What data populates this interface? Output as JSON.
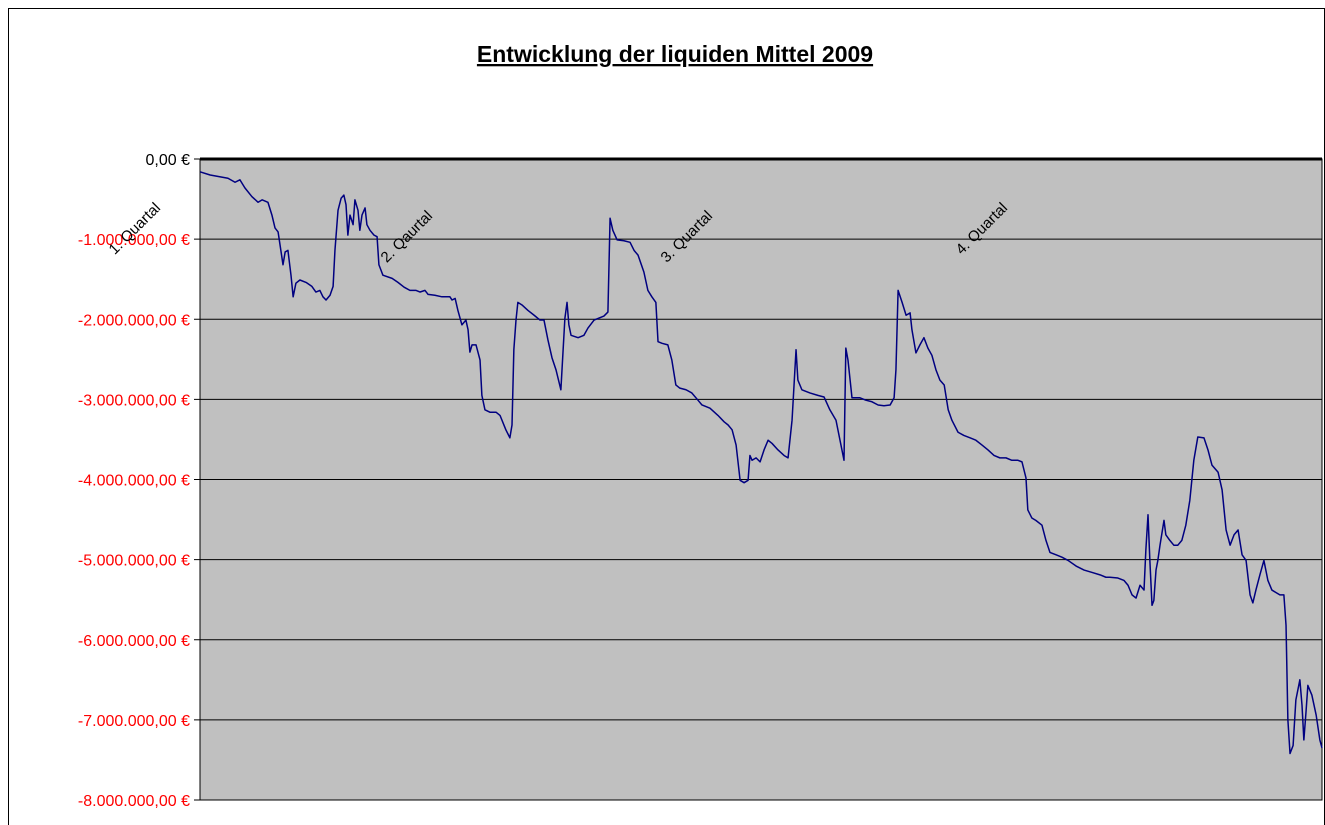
{
  "chart_data": {
    "type": "line",
    "title": "Entwicklung der liquiden Mittel 2009",
    "annotations": [
      "1. Quartal",
      "2. Qaurtal",
      "3. Quartal",
      "4. Quartal"
    ],
    "color": "#000080",
    "plot_background": "#c0c0c0",
    "grid": true,
    "negative_tick_label_color": "#ff0000",
    "xlim": [
      0,
      365
    ],
    "ylim": [
      -8000000,
      0
    ],
    "yticks": [
      {
        "value": 0,
        "label": "0,00 €"
      },
      {
        "value": -1000000,
        "label": "-1.000.000,00 €"
      },
      {
        "value": -2000000,
        "label": "-2.000.000,00 €"
      },
      {
        "value": -3000000,
        "label": "-3.000.000,00 €"
      },
      {
        "value": -4000000,
        "label": "-4.000.000,00 €"
      },
      {
        "value": -5000000,
        "label": "-5.000.000,00 €"
      },
      {
        "value": -6000000,
        "label": "-6.000.000,00 €"
      },
      {
        "value": -7000000,
        "label": "-7.000.000,00 €"
      },
      {
        "value": -8000000,
        "label": "-8.000.000,00 €"
      }
    ],
    "x": [
      0,
      3.3,
      9.1,
      11.4,
      13.0,
      14.6,
      16.9,
      18.9,
      20.2,
      22.1,
      23.4,
      24.4,
      25.4,
      26.3,
      27.0,
      27.7,
      28.6,
      29.6,
      30.3,
      31.2,
      32.5,
      34.5,
      36.4,
      37.7,
      39.0,
      40.0,
      41.0,
      42.3,
      43.3,
      43.9,
      44.9,
      45.9,
      46.8,
      47.5,
      48.1,
      48.8,
      49.8,
      50.4,
      51.4,
      52.0,
      52.7,
      53.7,
      54.3,
      55.3,
      56.6,
      57.6,
      58.2,
      59.5,
      62.5,
      64.4,
      66.4,
      68.3,
      70.3,
      71.6,
      73.2,
      74.2,
      76.4,
      78.7,
      81.3,
      82.0,
      83.0,
      83.9,
      85.2,
      86.5,
      87.2,
      87.8,
      88.5,
      89.8,
      91.1,
      91.7,
      92.7,
      94.3,
      96.3,
      97.6,
      99.5,
      100.8,
      101.5,
      102.1,
      102.8,
      103.4,
      104.7,
      106.7,
      108.7,
      110.6,
      111.9,
      113.2,
      114.5,
      115.8,
      117.4,
      118.7,
      119.4,
      120.0,
      120.7,
      123.0,
      124.9,
      126.2,
      128.2,
      129.5,
      131.4,
      132.7,
      133.4,
      134.3,
      135.7,
      137.9,
      139.9,
      141.2,
      142.5,
      144.4,
      145.7,
      147.0,
      148.3,
      149.0,
      150.3,
      152.2,
      153.5,
      154.8,
      156.1,
      158.1,
      160.0,
      162.0,
      163.3,
      165.9,
      168.5,
      170.5,
      171.8,
      173.1,
      174.4,
      175.7,
      177.0,
      178.3,
      178.9,
      179.6,
      180.9,
      182.2,
      183.5,
      184.8,
      186.1,
      188.0,
      190.0,
      191.3,
      192.6,
      193.9,
      194.5,
      195.8,
      198.4,
      201.0,
      203.0,
      204.9,
      206.9,
      208.2,
      209.5,
      210.1,
      210.8,
      212.1,
      214.7,
      216.6,
      218.6,
      220.6,
      222.5,
      224.5,
      225.8,
      226.4,
      227.1,
      228.4,
      229.7,
      231.0,
      231.6,
      232.9,
      234.2,
      235.5,
      236.8,
      238.1,
      239.4,
      240.7,
      242.1,
      243.4,
      244.6,
      246.6,
      248.5,
      250.5,
      252.4,
      254.4,
      256.3,
      258.3,
      260.2,
      262.2,
      264.1,
      266.1,
      267.4,
      268.7,
      269.3,
      270.6,
      271.9,
      273.9,
      275.2,
      276.5,
      278.5,
      280.4,
      282.4,
      285.0,
      287.6,
      290.2,
      292.8,
      294.7,
      296.0,
      298.6,
      300.6,
      301.9,
      303.2,
      304.5,
      305.8,
      307.1,
      307.7,
      308.4,
      309.0,
      309.7,
      310.3,
      311.0,
      311.6,
      312.3,
      313.6,
      314.2,
      315.5,
      316.8,
      318.1,
      319.4,
      320.7,
      322.0,
      323.3,
      324.6,
      326.6,
      327.9,
      329.2,
      331.2,
      332.5,
      333.8,
      335.1,
      336.4,
      337.7,
      339.0,
      340.3,
      341.6,
      342.5,
      343.5,
      344.8,
      346.1,
      347.4,
      348.7,
      350.0,
      351.3,
      352.6,
      353.3,
      353.9,
      354.6,
      355.6,
      356.5,
      357.8,
      358.5,
      359.1,
      359.8,
      360.4,
      361.7,
      363.1,
      364.3,
      365.0
    ],
    "values": [
      -160000,
      -200000,
      -240000,
      -290000,
      -260000,
      -360000,
      -470000,
      -540000,
      -510000,
      -540000,
      -700000,
      -860000,
      -910000,
      -1140000,
      -1320000,
      -1160000,
      -1140000,
      -1450000,
      -1720000,
      -1550000,
      -1510000,
      -1540000,
      -1590000,
      -1660000,
      -1640000,
      -1720000,
      -1760000,
      -1700000,
      -1590000,
      -1140000,
      -640000,
      -490000,
      -450000,
      -570000,
      -950000,
      -700000,
      -820000,
      -510000,
      -640000,
      -890000,
      -700000,
      -610000,
      -820000,
      -890000,
      -950000,
      -970000,
      -1320000,
      -1450000,
      -1490000,
      -1540000,
      -1600000,
      -1640000,
      -1640000,
      -1660000,
      -1640000,
      -1690000,
      -1700000,
      -1720000,
      -1720000,
      -1760000,
      -1740000,
      -1890000,
      -2070000,
      -2010000,
      -2130000,
      -2410000,
      -2320000,
      -2320000,
      -2510000,
      -2950000,
      -3130000,
      -3160000,
      -3160000,
      -3200000,
      -3380000,
      -3480000,
      -3320000,
      -2380000,
      -2010000,
      -1790000,
      -1820000,
      -1890000,
      -1950000,
      -2010000,
      -2010000,
      -2260000,
      -2480000,
      -2630000,
      -2880000,
      -1990000,
      -1790000,
      -2070000,
      -2200000,
      -2230000,
      -2200000,
      -2110000,
      -2010000,
      -1990000,
      -1960000,
      -1910000,
      -740000,
      -890000,
      -1010000,
      -1020000,
      -1040000,
      -1140000,
      -1200000,
      -1410000,
      -1640000,
      -1720000,
      -1790000,
      -2280000,
      -2300000,
      -2320000,
      -2510000,
      -2820000,
      -2860000,
      -2880000,
      -2920000,
      -3010000,
      -3070000,
      -3110000,
      -3200000,
      -3280000,
      -3320000,
      -3380000,
      -3570000,
      -4010000,
      -4040000,
      -4010000,
      -3700000,
      -3760000,
      -3730000,
      -3780000,
      -3630000,
      -3510000,
      -3550000,
      -3630000,
      -3700000,
      -3730000,
      -3260000,
      -2380000,
      -2760000,
      -2880000,
      -2920000,
      -2950000,
      -2970000,
      -3130000,
      -3260000,
      -3510000,
      -3760000,
      -2360000,
      -2510000,
      -2980000,
      -2980000,
      -3010000,
      -3030000,
      -3070000,
      -3080000,
      -3070000,
      -2980000,
      -2630000,
      -1640000,
      -1790000,
      -1950000,
      -1920000,
      -2130000,
      -2420000,
      -2320000,
      -2230000,
      -2360000,
      -2450000,
      -2630000,
      -2760000,
      -2820000,
      -3130000,
      -3260000,
      -3410000,
      -3450000,
      -3480000,
      -3510000,
      -3570000,
      -3630000,
      -3700000,
      -3730000,
      -3730000,
      -3760000,
      -3760000,
      -3780000,
      -3980000,
      -4380000,
      -4480000,
      -4510000,
      -4570000,
      -4760000,
      -4910000,
      -4940000,
      -4970000,
      -5010000,
      -5080000,
      -5130000,
      -5160000,
      -5190000,
      -5220000,
      -5220000,
      -5230000,
      -5260000,
      -5320000,
      -5440000,
      -5480000,
      -5320000,
      -5380000,
      -4880000,
      -4440000,
      -5010000,
      -5570000,
      -5510000,
      -5130000,
      -5010000,
      -4820000,
      -4510000,
      -4690000,
      -4760000,
      -4820000,
      -4820000,
      -4760000,
      -4570000,
      -4260000,
      -3760000,
      -3470000,
      -3480000,
      -3630000,
      -3820000,
      -3910000,
      -4130000,
      -4630000,
      -4820000,
      -4690000,
      -4630000,
      -4940000,
      -5010000,
      -5440000,
      -5540000,
      -5380000,
      -5190000,
      -5010000,
      -5260000,
      -5380000,
      -5410000,
      -5440000,
      -5440000,
      -5820000,
      -7000000,
      -7420000,
      -7320000,
      -6750000,
      -6500000,
      -6820000,
      -7250000,
      -6900000,
      -6570000,
      -6690000,
      -6940000,
      -7250000,
      -7350000
    ]
  }
}
